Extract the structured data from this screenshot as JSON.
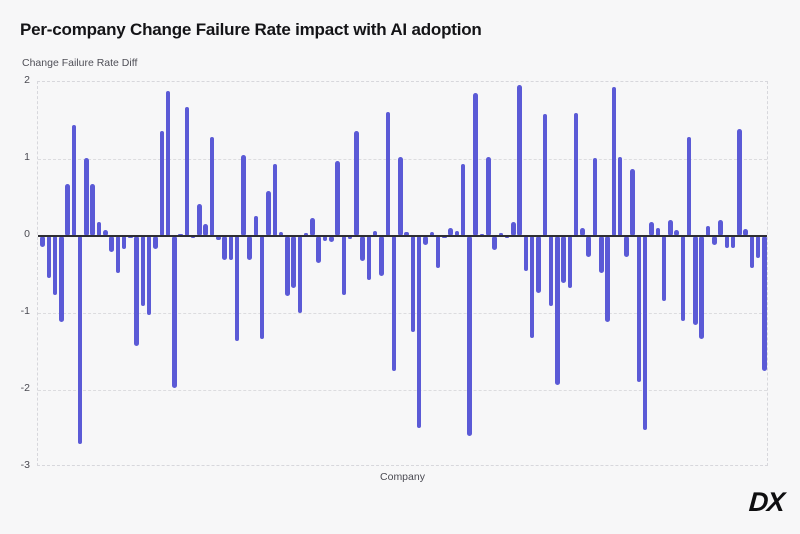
{
  "header": {
    "title": "Per-company Change Failure Rate impact with AI adoption"
  },
  "logo": {
    "text": "DX"
  },
  "colors": {
    "background": "#f7f7f8",
    "bar": "#5b5ad6",
    "zero_line": "#2e2e33",
    "grid": "#dcdcdf",
    "text_primary": "#141417",
    "text_secondary": "#4a4a52"
  },
  "chart_data": {
    "type": "bar",
    "title": "Per-company Change Failure Rate impact with AI adoption",
    "xlabel": "Company",
    "ylabel": "Change Failure Rate Diff",
    "ylim": [
      -3,
      2
    ],
    "yticks": [
      2,
      1,
      0,
      -1,
      -2,
      -3
    ],
    "x_tick_labels": "none (individual companies unlabeled)",
    "grid": "horizontal dashed gridlines at integer values, dashed plot border, solid dark zero line",
    "legend": "none",
    "bar_color": "#5b5ad6",
    "values": [
      -0.14,
      -0.55,
      -0.76,
      -1.12,
      0.68,
      1.44,
      -2.7,
      1.01,
      0.68,
      0.18,
      0.08,
      -0.21,
      -0.48,
      -0.17,
      -0.02,
      -1.43,
      -0.91,
      -1.02,
      -0.17,
      1.37,
      1.88,
      -1.98,
      0.02,
      1.68,
      -0.02,
      0.41,
      0.15,
      1.29,
      -0.05,
      -0.31,
      -0.31,
      -1.36,
      1.05,
      -0.31,
      0.26,
      -1.34,
      0.58,
      0.94,
      0.05,
      -0.78,
      -0.67,
      -1.0,
      0.04,
      0.23,
      -0.35,
      -0.06,
      -0.08,
      0.97,
      -0.76,
      -0.04,
      1.37,
      -0.33,
      -0.57,
      0.07,
      -0.52,
      1.61,
      -1.75,
      1.02,
      0.05,
      -1.25,
      -2.49,
      -0.12,
      0.05,
      -0.42,
      -0.02,
      0.11,
      0.06,
      0.94,
      -2.6,
      1.86,
      0.02,
      1.03,
      -0.18,
      0.04,
      -0.02,
      0.18,
      1.96,
      -0.46,
      -1.32,
      -0.74,
      1.59,
      -0.91,
      -1.94,
      -0.61,
      -0.67,
      1.6,
      0.11,
      -0.27,
      1.01,
      -0.48,
      -1.12,
      1.93,
      1.03,
      -0.27,
      0.87,
      -1.89,
      -2.52,
      0.18,
      0.11,
      -0.85,
      0.21,
      0.08,
      -1.1,
      1.28,
      -1.15,
      -1.34,
      0.13,
      -0.12,
      0.21,
      -0.16,
      -0.16,
      1.39,
      0.09,
      -0.42,
      -0.29,
      -1.75
    ]
  }
}
